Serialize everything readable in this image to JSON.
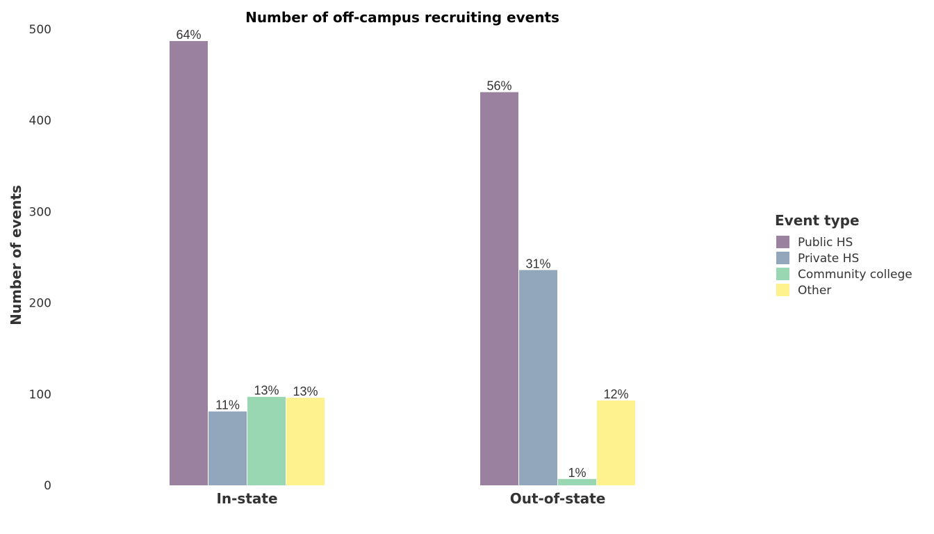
{
  "chart_data": {
    "type": "bar",
    "title": "Number of off-campus recruiting events",
    "xlabel": "",
    "ylabel": "Number of events",
    "ylim": [
      0,
      500
    ],
    "yticks": [
      0,
      100,
      200,
      300,
      400,
      500
    ],
    "grid": false,
    "categories": [
      "In-state",
      "Out-of-state"
    ],
    "legend": {
      "title": "Event type",
      "placement": "right"
    },
    "series": [
      {
        "name": "Public HS",
        "color": "#9a81a0",
        "values": [
          487,
          431
        ],
        "labels": [
          "64%",
          "56%"
        ]
      },
      {
        "name": "Private HS",
        "color": "#92a7bb",
        "values": [
          81,
          236
        ],
        "labels": [
          "11%",
          "31%"
        ]
      },
      {
        "name": "Community college",
        "color": "#98d7b1",
        "values": [
          97,
          7
        ],
        "labels": [
          "13%",
          "1%"
        ]
      },
      {
        "name": "Other",
        "color": "#fdf28e",
        "values": [
          96,
          93
        ],
        "labels": [
          "13%",
          "12%"
        ]
      }
    ]
  }
}
